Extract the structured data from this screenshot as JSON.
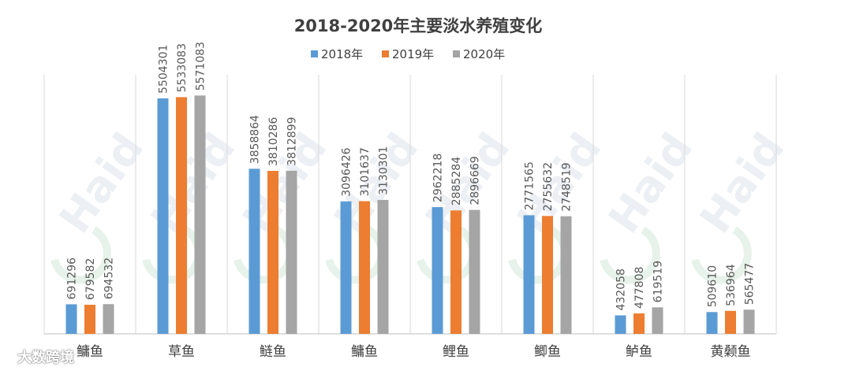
{
  "chart_data": {
    "type": "bar",
    "title": "2018-2020年主要淡水养殖变化",
    "categories": [
      "鳙鱼",
      "草鱼",
      "鲢鱼",
      "鳙鱼",
      "鲤鱼",
      "鲫鱼",
      "鲈鱼",
      "黄颡鱼"
    ],
    "series": [
      {
        "name": "2018年",
        "color": "#5b9bd5",
        "values": [
          691296,
          5504301,
          3858864,
          3096426,
          2962218,
          2771565,
          432058,
          509610
        ]
      },
      {
        "name": "2019年",
        "color": "#ed7d31",
        "values": [
          679582,
          5533083,
          3810286,
          3101637,
          2885284,
          2755632,
          477808,
          536964
        ]
      },
      {
        "name": "2020年",
        "color": "#a5a5a5",
        "values": [
          694532,
          5571083,
          3812899,
          3130301,
          2896669,
          2748519,
          619519,
          565477
        ]
      }
    ],
    "ylim": [
      0,
      6000000
    ],
    "grid": "vertical category separators",
    "legend": "top-center",
    "xlabel": "",
    "ylabel": ""
  },
  "watermark": {
    "logo_text": "Haid",
    "caption": "大数跨境"
  }
}
